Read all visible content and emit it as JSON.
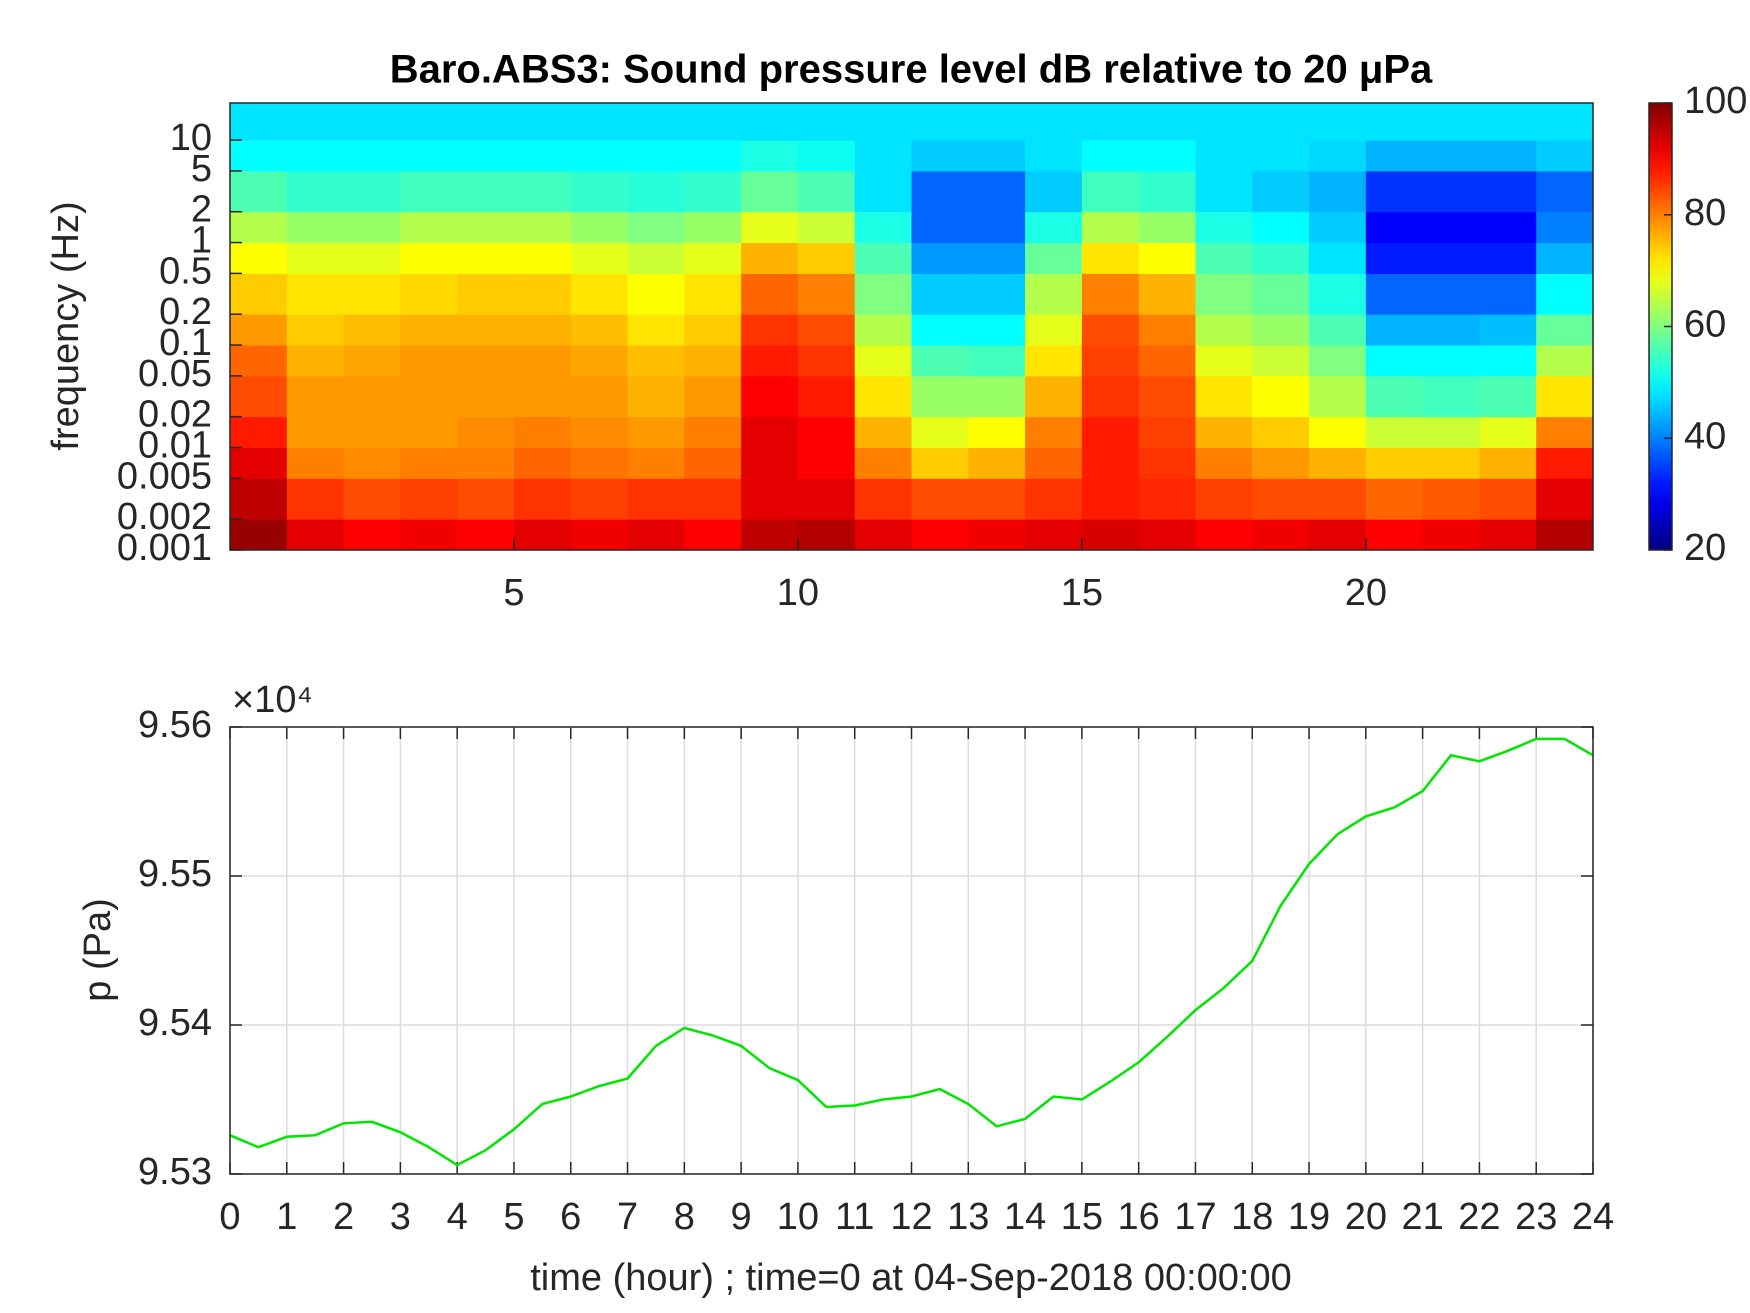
{
  "chart_data": [
    {
      "type": "heatmap",
      "title": "Baro.ABS3: Sound pressure level dB relative to 20 μPa",
      "ylabel": "frequency (Hz)",
      "xlim": [
        0,
        24
      ],
      "xticks": [
        5,
        10,
        15,
        20
      ],
      "yscale": "log",
      "ylim": [
        0.001,
        23
      ],
      "yticks": [
        0.001,
        0.002,
        0.005,
        0.01,
        0.02,
        0.05,
        0.1,
        0.2,
        0.5,
        1,
        2,
        5,
        10
      ],
      "x_bins": [
        0,
        1,
        2,
        3,
        4,
        5,
        6,
        7,
        8,
        9,
        10,
        11,
        12,
        13,
        14,
        15,
        16,
        17,
        18,
        19,
        20,
        21,
        22,
        23,
        24
      ],
      "y_bins": [
        0.001,
        0.002,
        0.005,
        0.01,
        0.02,
        0.05,
        0.1,
        0.2,
        0.5,
        1,
        2,
        5,
        10,
        23
      ],
      "z": [
        [
          98,
          92,
          90,
          91,
          90,
          92,
          91,
          92,
          90,
          95,
          96,
          92,
          90,
          91,
          92,
          93,
          92,
          90,
          91,
          92,
          90,
          91,
          92,
          96
        ],
        [
          95,
          86,
          84,
          85,
          84,
          86,
          85,
          86,
          86,
          92,
          92,
          86,
          84,
          84,
          86,
          88,
          87,
          85,
          84,
          84,
          82,
          83,
          84,
          92
        ],
        [
          92,
          80,
          79,
          80,
          80,
          82,
          81,
          80,
          82,
          92,
          90,
          80,
          74,
          76,
          82,
          88,
          86,
          80,
          78,
          76,
          74,
          74,
          76,
          88
        ],
        [
          88,
          78,
          78,
          78,
          79,
          80,
          79,
          78,
          80,
          92,
          90,
          76,
          68,
          70,
          80,
          88,
          85,
          76,
          74,
          70,
          66,
          66,
          68,
          80
        ],
        [
          84,
          78,
          78,
          78,
          78,
          78,
          78,
          76,
          78,
          90,
          88,
          72,
          62,
          62,
          76,
          86,
          84,
          72,
          70,
          64,
          56,
          55,
          56,
          72
        ],
        [
          82,
          76,
          77,
          78,
          78,
          78,
          77,
          75,
          76,
          88,
          86,
          68,
          56,
          55,
          72,
          85,
          82,
          68,
          66,
          60,
          50,
          50,
          50,
          64
        ],
        [
          78,
          74,
          75,
          76,
          76,
          76,
          75,
          72,
          74,
          86,
          84,
          64,
          50,
          50,
          68,
          84,
          80,
          64,
          62,
          56,
          44,
          44,
          45,
          58
        ],
        [
          74,
          72,
          72,
          73,
          74,
          74,
          72,
          70,
          72,
          82,
          80,
          60,
          46,
          46,
          64,
          80,
          76,
          60,
          58,
          52,
          38,
          38,
          38,
          50
        ],
        [
          70,
          68,
          68,
          70,
          70,
          70,
          68,
          66,
          68,
          76,
          74,
          56,
          42,
          42,
          58,
          72,
          70,
          56,
          54,
          48,
          32,
          32,
          32,
          44
        ],
        [
          64,
          62,
          62,
          64,
          64,
          64,
          62,
          60,
          62,
          68,
          66,
          52,
          38,
          38,
          52,
          64,
          62,
          52,
          50,
          46,
          30,
          30,
          30,
          40
        ],
        [
          56,
          54,
          54,
          55,
          55,
          55,
          54,
          53,
          54,
          58,
          56,
          48,
          38,
          38,
          46,
          55,
          54,
          48,
          46,
          44,
          34,
          34,
          34,
          38
        ],
        [
          50,
          50,
          50,
          50,
          50,
          50,
          50,
          50,
          50,
          52,
          51,
          48,
          46,
          46,
          48,
          50,
          50,
          48,
          48,
          47,
          44,
          44,
          44,
          46
        ],
        [
          48,
          48,
          48,
          48,
          48,
          48,
          48,
          48,
          48,
          48,
          48,
          48,
          48,
          48,
          48,
          48,
          48,
          48,
          48,
          48,
          48,
          48,
          48,
          48
        ]
      ],
      "colormap": "jet",
      "clim": [
        20,
        100
      ],
      "cticks": [
        20,
        40,
        60,
        80,
        100
      ]
    },
    {
      "type": "line",
      "xlabel": "time (hour) ; time=0 at 04-Sep-2018 00:00:00",
      "ylabel": "p (Pa)",
      "y_exponent_label": "×10⁴",
      "xlim": [
        0,
        24
      ],
      "xticks": [
        0,
        1,
        2,
        3,
        4,
        5,
        6,
        7,
        8,
        9,
        10,
        11,
        12,
        13,
        14,
        15,
        16,
        17,
        18,
        19,
        20,
        21,
        22,
        23,
        24
      ],
      "ylim": [
        95300,
        95600
      ],
      "yticks": [
        {
          "value": 95300,
          "label": "9.53"
        },
        {
          "value": 95400,
          "label": "9.54"
        },
        {
          "value": 95500,
          "label": "9.55"
        },
        {
          "value": 95600,
          "label": "9.56"
        }
      ],
      "grid": true,
      "color": "#00e600",
      "x": [
        0,
        0.5,
        1,
        1.5,
        2,
        2.5,
        3,
        3.5,
        4,
        4.5,
        5,
        5.5,
        6,
        6.5,
        7,
        7.5,
        8,
        8.5,
        9,
        9.5,
        10,
        10.5,
        11,
        11.5,
        12,
        12.5,
        13,
        13.5,
        14,
        14.5,
        15,
        15.5,
        16,
        16.5,
        17,
        17.5,
        18,
        18.5,
        19,
        19.5,
        20,
        20.5,
        21,
        21.5,
        22,
        22.5,
        23,
        23.5,
        24
      ],
      "values": [
        95326,
        95318,
        95325,
        95326,
        95334,
        95335,
        95328,
        95318,
        95306,
        95316,
        95330,
        95347,
        95352,
        95359,
        95364,
        95386,
        95398,
        95393,
        95386,
        95371,
        95363,
        95345,
        95346,
        95350,
        95352,
        95357,
        95347,
        95332,
        95337,
        95352,
        95350,
        95362,
        95375,
        95392,
        95410,
        95425,
        95443,
        95480,
        95508,
        95528,
        95540,
        95546,
        95557,
        95581,
        95577,
        95584,
        95592,
        95592,
        95581
      ]
    }
  ]
}
